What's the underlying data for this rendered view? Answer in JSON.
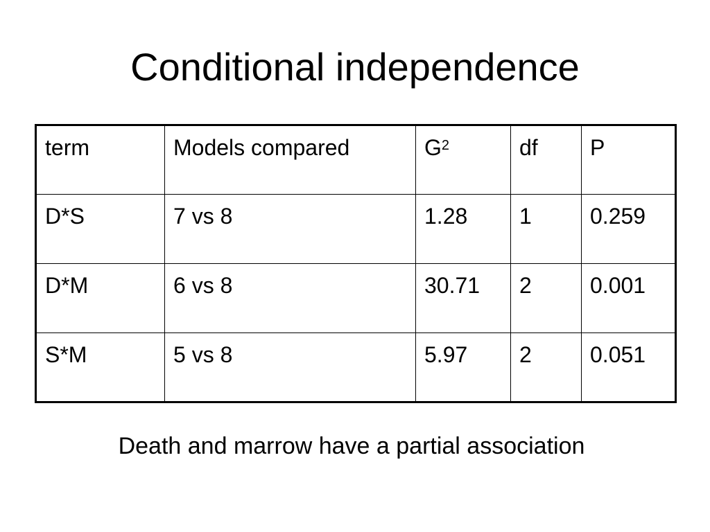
{
  "slide": {
    "title": "Conditional independence",
    "footnote": "Death and marrow have a partial association"
  },
  "table": {
    "headers": {
      "term": "term",
      "models": "Models compared",
      "g2_base": "G",
      "g2_sup": "2",
      "df": "df",
      "p": "P"
    },
    "rows": [
      {
        "term": "D*S",
        "models": "7 vs 8",
        "g2": "1.28",
        "df": "1",
        "p": "0.259"
      },
      {
        "term": "D*M",
        "models": "6 vs 8",
        "g2": "30.71",
        "df": "2",
        "p": "0.001"
      },
      {
        "term": "S*M",
        "models": "5 vs 8",
        "g2": "5.97",
        "df": "2",
        "p": "0.051"
      }
    ]
  }
}
